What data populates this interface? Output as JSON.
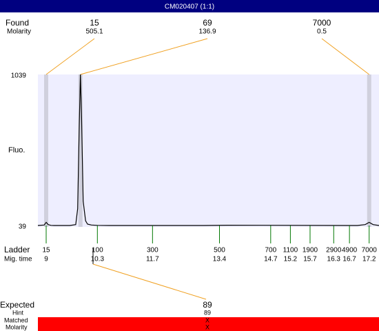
{
  "chart_data": {
    "type": "line",
    "title": "CM020407 (1:1)",
    "y_label": "Fluo.",
    "ylim": [
      39,
      1039
    ],
    "yticks": [
      39,
      1039
    ],
    "xlim": [
      8.79,
      17.45
    ],
    "color": "#000000",
    "x": [
      8.79,
      8.95,
      9.0,
      9.05,
      9.12,
      9.2,
      9.6,
      9.75,
      9.8,
      9.84,
      9.87,
      9.9,
      9.94,
      10.0,
      10.05,
      10.15,
      10.3,
      10.6,
      13.0,
      13.6,
      16.9,
      17.1,
      17.2,
      17.3,
      17.45
    ],
    "values": [
      39,
      42,
      60,
      45,
      40,
      39,
      39,
      45,
      150,
      700,
      1039,
      750,
      200,
      70,
      48,
      42,
      40,
      39,
      39,
      41,
      39,
      45,
      60,
      45,
      39
    ],
    "found": {
      "label": "Found",
      "molarity_label": "Molarity",
      "sizes": [
        15,
        69,
        7000
      ],
      "molarities": [
        505.1,
        136.9,
        0.5
      ],
      "times": [
        9,
        9.87,
        17.2
      ]
    },
    "ladder": {
      "label": "Ladder",
      "time_label": "Mig. time",
      "sizes": [
        15,
        100,
        300,
        500,
        700,
        1100,
        1900,
        2900,
        4900,
        7000
      ],
      "times": [
        9,
        10.3,
        11.7,
        13.4,
        14.7,
        15.2,
        15.7,
        16.3,
        16.7,
        17.2
      ]
    },
    "expected": {
      "label": "Expected",
      "hint_label": "Hint",
      "matched_label": "Matched",
      "molarity_label": "Molarity",
      "size": 89,
      "time": 10.19,
      "hint": 89,
      "matched": "X",
      "molarity": "X"
    }
  }
}
